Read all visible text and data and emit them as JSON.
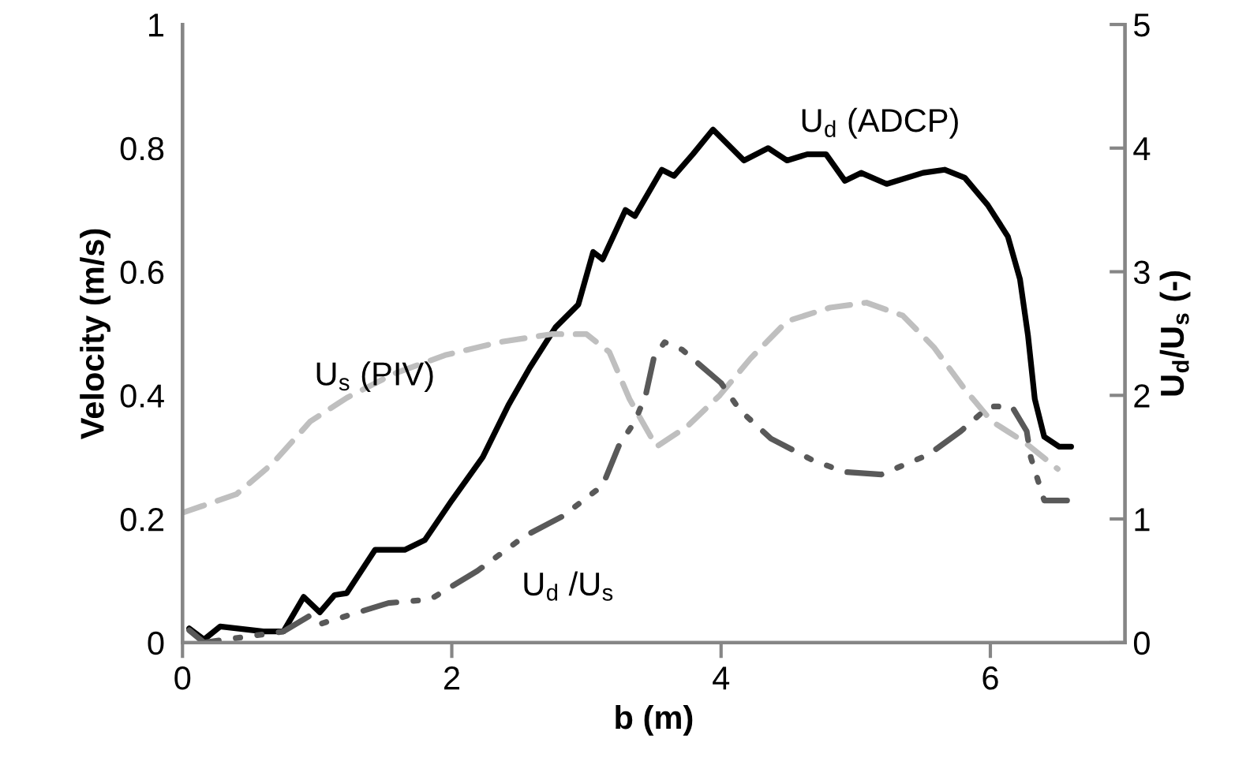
{
  "chart_data": {
    "type": "line",
    "xlabel": "b (m)",
    "ylabel": "Velocity (m/s)",
    "y2label": "U$_{d}$/U$_{s}$ (-)",
    "xlim": [
      0,
      7
    ],
    "xticks": [
      0,
      2,
      4,
      6
    ],
    "ylim": [
      0,
      1
    ],
    "yticks": [
      0,
      0.2,
      0.4,
      0.6,
      0.8,
      1
    ],
    "y2lim": [
      0,
      5
    ],
    "y2ticks": [
      0,
      1,
      2,
      3,
      4,
      5
    ],
    "grid": false,
    "legend": false,
    "series": [
      {
        "color": "#000000",
        "line_style": "solid",
        "x": [
          0.05,
          0.16,
          0.28,
          0.6,
          0.75,
          0.9,
          1.02,
          1.13,
          1.22,
          1.43,
          1.65,
          1.8,
          2.0,
          2.23,
          2.42,
          2.58,
          2.77,
          2.94,
          3.05,
          3.12,
          3.29,
          3.36,
          3.56,
          3.65,
          3.79,
          3.94,
          4.17,
          4.35,
          4.49,
          4.64,
          4.78,
          4.92,
          5.04,
          5.23,
          5.5,
          5.66,
          5.81,
          5.98,
          6.13,
          6.22,
          6.28,
          6.33,
          6.4,
          6.51,
          6.6
        ],
        "values": [
          0.023,
          0.005,
          0.026,
          0.018,
          0.018,
          0.074,
          0.049,
          0.077,
          0.08,
          0.15,
          0.15,
          0.166,
          0.23,
          0.3,
          0.384,
          0.445,
          0.51,
          0.547,
          0.632,
          0.62,
          0.7,
          0.69,
          0.765,
          0.755,
          0.79,
          0.83,
          0.78,
          0.8,
          0.78,
          0.79,
          0.79,
          0.747,
          0.76,
          0.742,
          0.76,
          0.765,
          0.752,
          0.708,
          0.657,
          0.588,
          0.496,
          0.394,
          0.333,
          0.317,
          0.317
        ]
      },
      {
        "color": "#bfbfbf",
        "line_style": "dashed",
        "x": [
          0,
          0.4,
          0.67,
          0.95,
          1.22,
          1.57,
          1.95,
          2.35,
          2.74,
          3.0,
          3.17,
          3.32,
          3.52,
          3.75,
          3.99,
          4.22,
          4.49,
          4.81,
          5.08,
          5.35,
          5.58,
          5.81,
          6.01,
          6.25,
          6.5
        ],
        "values": [
          0.21,
          0.24,
          0.29,
          0.358,
          0.396,
          0.435,
          0.465,
          0.486,
          0.499,
          0.499,
          0.47,
          0.394,
          0.317,
          0.35,
          0.4,
          0.46,
          0.52,
          0.542,
          0.55,
          0.529,
          0.478,
          0.41,
          0.358,
          0.325,
          0.281
        ]
      },
      {
        "color": "#595959",
        "line_style": "dashdotdot",
        "axis": "y2",
        "x": [
          0.05,
          0.16,
          0.75,
          0.95,
          1.02,
          1.53,
          1.84,
          2.19,
          2.54,
          2.82,
          3.12,
          3.24,
          3.36,
          3.44,
          3.5,
          3.58,
          3.71,
          3.85,
          4.0,
          4.14,
          4.37,
          4.69,
          4.92,
          5.19,
          5.54,
          5.78,
          5.99,
          6.16,
          6.27,
          6.3,
          6.4,
          6.57
        ],
        "values": [
          0.1,
          0.0,
          0.09,
          0.22,
          0.15,
          0.32,
          0.35,
          0.58,
          0.86,
          1.02,
          1.27,
          1.59,
          1.79,
          2.0,
          2.3,
          2.43,
          2.37,
          2.24,
          2.1,
          1.88,
          1.65,
          1.47,
          1.38,
          1.36,
          1.52,
          1.71,
          1.91,
          1.91,
          1.71,
          1.5,
          1.15,
          1.15
        ]
      }
    ],
    "annotations": [
      "U$_{d}$ (ADCP)",
      "U$_{s}$ (PIV)",
      "U$_{d}$ /U$_{s}$"
    ]
  }
}
